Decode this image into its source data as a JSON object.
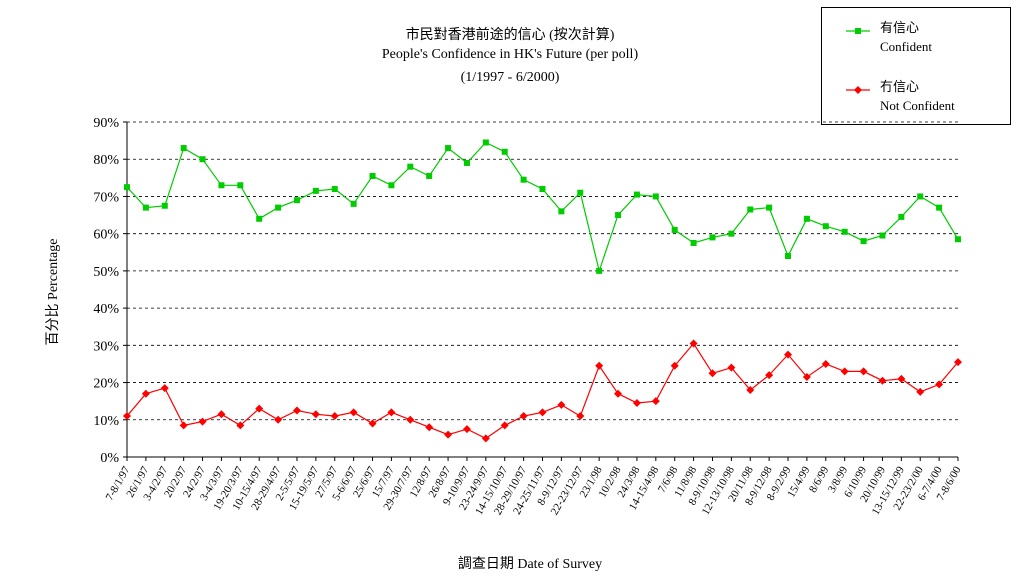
{
  "chart_data": {
    "type": "line",
    "title": "市民對香港前途的信心 (按次計算)",
    "subtitle": "People's Confidence in HK's Future (per poll)",
    "period": "(1/1997 - 6/2000)",
    "xlabel": "調查日期 Date of Survey",
    "ylabel": "百分比 Percentage",
    "ylim": [
      0,
      90
    ],
    "yticks": [
      "0%",
      "10%",
      "20%",
      "30%",
      "40%",
      "50%",
      "60%",
      "70%",
      "80%",
      "90%"
    ],
    "grid": "horizontal-dashed",
    "legend_position": "top-right",
    "categories": [
      "7-8/1/97",
      "26/1/97",
      "3-4/2/97",
      "20/2/97",
      "24/2/97",
      "3-4/3/97",
      "19-20/3/97",
      "10-15/4/97",
      "28-29/4/97",
      "2-5/5/97",
      "15-19/5/97",
      "27/5/97",
      "5-6/6/97",
      "25/6/97",
      "15/7/97",
      "29-30/7/97",
      "12/8/97",
      "26/8/97",
      "9-10/9/97",
      "23-24/9/97",
      "14-15/10/97",
      "28-29/10/97",
      "24-25/11/97",
      "8-9/12/97",
      "22-23/12/97",
      "23/1/98",
      "10/2/98",
      "24/3/98",
      "14-15/4/98",
      "7/6/98",
      "11/8/98",
      "8-9/10/98",
      "12-13/10/98",
      "20/11/98",
      "8-9/12/98",
      "8-9/2/99",
      "15/4/99",
      "8/6/99",
      "3/8/99",
      "6/10/99",
      "20/10/99",
      "13-15/12/99",
      "22-23/2/00",
      "6-7/4/00",
      "7-8/6/00"
    ],
    "series": [
      {
        "name": "有信心",
        "name_en": "Confident",
        "color": "#00cc00",
        "marker": "square",
        "values": [
          72.5,
          67,
          67.5,
          83,
          80,
          73,
          73,
          64,
          67,
          69,
          71.5,
          72,
          68,
          75.5,
          73,
          78,
          75.5,
          83,
          79,
          84.5,
          82,
          74.5,
          72,
          66,
          71,
          50,
          65,
          70.5,
          70,
          61,
          57.5,
          59,
          60,
          66.5,
          67,
          54,
          64,
          62,
          60.5,
          58,
          59.5,
          64.5,
          70,
          67,
          58.5
        ]
      },
      {
        "name": "冇信心",
        "name_en": "Not Confident",
        "color": "#ff0000",
        "marker": "diamond",
        "values": [
          11,
          17,
          18.5,
          8.5,
          9.5,
          11.5,
          8.5,
          13,
          10,
          12.5,
          11.5,
          11,
          12,
          9,
          12,
          10,
          8,
          6,
          7.5,
          5,
          8.5,
          11,
          12,
          14,
          11,
          24.5,
          17,
          14.5,
          15,
          24.5,
          30.5,
          22.5,
          24,
          18,
          22,
          27.5,
          21.5,
          25,
          23,
          23,
          20.5,
          21,
          17.5,
          19.5,
          25.5
        ]
      }
    ]
  }
}
